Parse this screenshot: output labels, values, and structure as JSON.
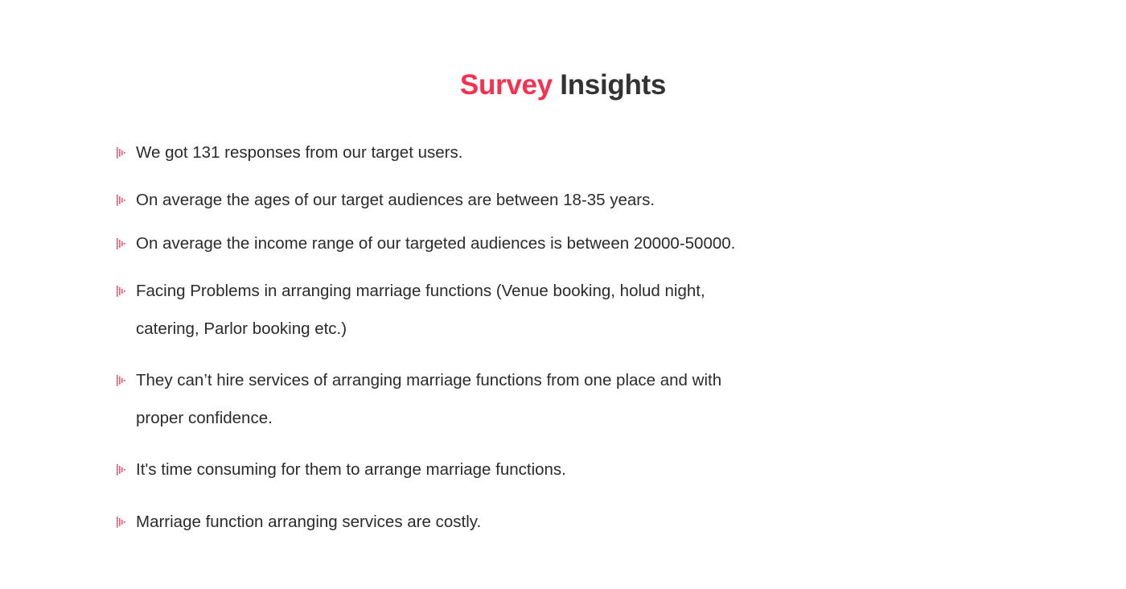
{
  "title": {
    "accent": "Survey",
    "rest": "Insights"
  },
  "colors": {
    "accent": "#f7314f",
    "text": "#2b2b2e"
  },
  "bullet_icon": "dotted-arrow-icon",
  "items": [
    {
      "lines": [
        "We got 131 responses from our target users."
      ]
    },
    {
      "lines": [
        "On average the ages of our target audiences are between 18-35 years."
      ]
    },
    {
      "lines": [
        "On average the income range of our targeted audiences is between 20000-50000."
      ]
    },
    {
      "lines": [
        "Facing Problems in arranging marriage functions (Venue booking, holud night,",
        "catering, Parlor booking etc.)"
      ]
    },
    {
      "lines": [
        "They can’t hire services of arranging marriage functions from one place and with",
        "proper confidence."
      ]
    },
    {
      "lines": [
        "It's time consuming for them to arrange marriage functions."
      ]
    },
    {
      "lines": [
        "Marriage function arranging services are costly."
      ]
    }
  ]
}
